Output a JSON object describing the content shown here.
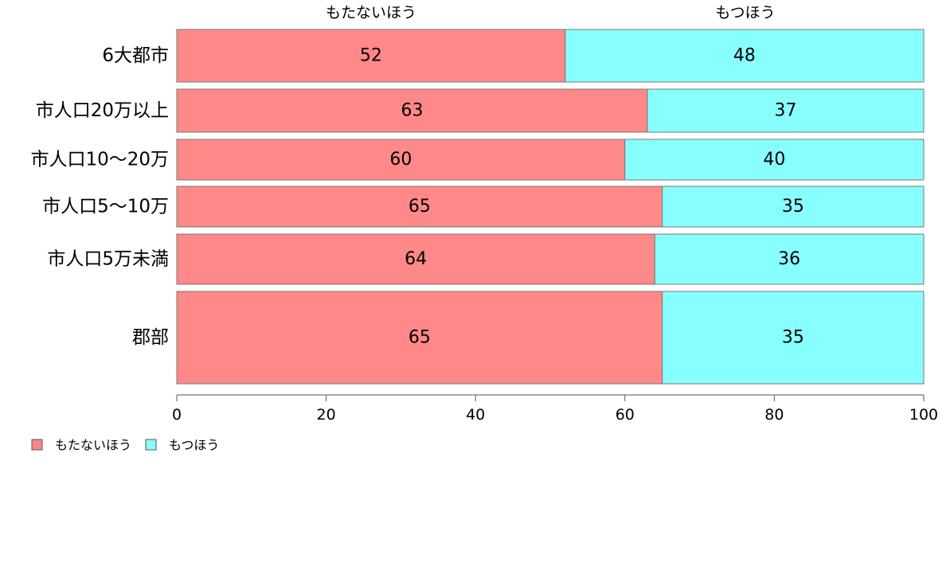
{
  "chart_data": {
    "type": "bar",
    "orientation": "horizontal",
    "stacked": true,
    "categories": [
      "6大都市",
      "市人口20万以上",
      "市人口10〜20万",
      "市人口5〜10万",
      "市人口5万未満",
      "郡部"
    ],
    "series": [
      {
        "name": "もたないほう",
        "values": [
          52,
          63,
          60,
          65,
          64,
          65
        ],
        "color": "#FF8888"
      },
      {
        "name": "もつほう",
        "values": [
          48,
          37,
          40,
          35,
          36,
          35
        ],
        "color": "#88FFFF"
      }
    ],
    "xlim": [
      0,
      100
    ],
    "xticks": [
      0,
      20,
      40,
      60,
      80,
      100
    ],
    "column_headers": [
      "もたないほう",
      "もつほう"
    ],
    "grid": false,
    "legend": {
      "position": "bottom-left",
      "items": [
        "もたないほう",
        "もつほう"
      ]
    }
  }
}
